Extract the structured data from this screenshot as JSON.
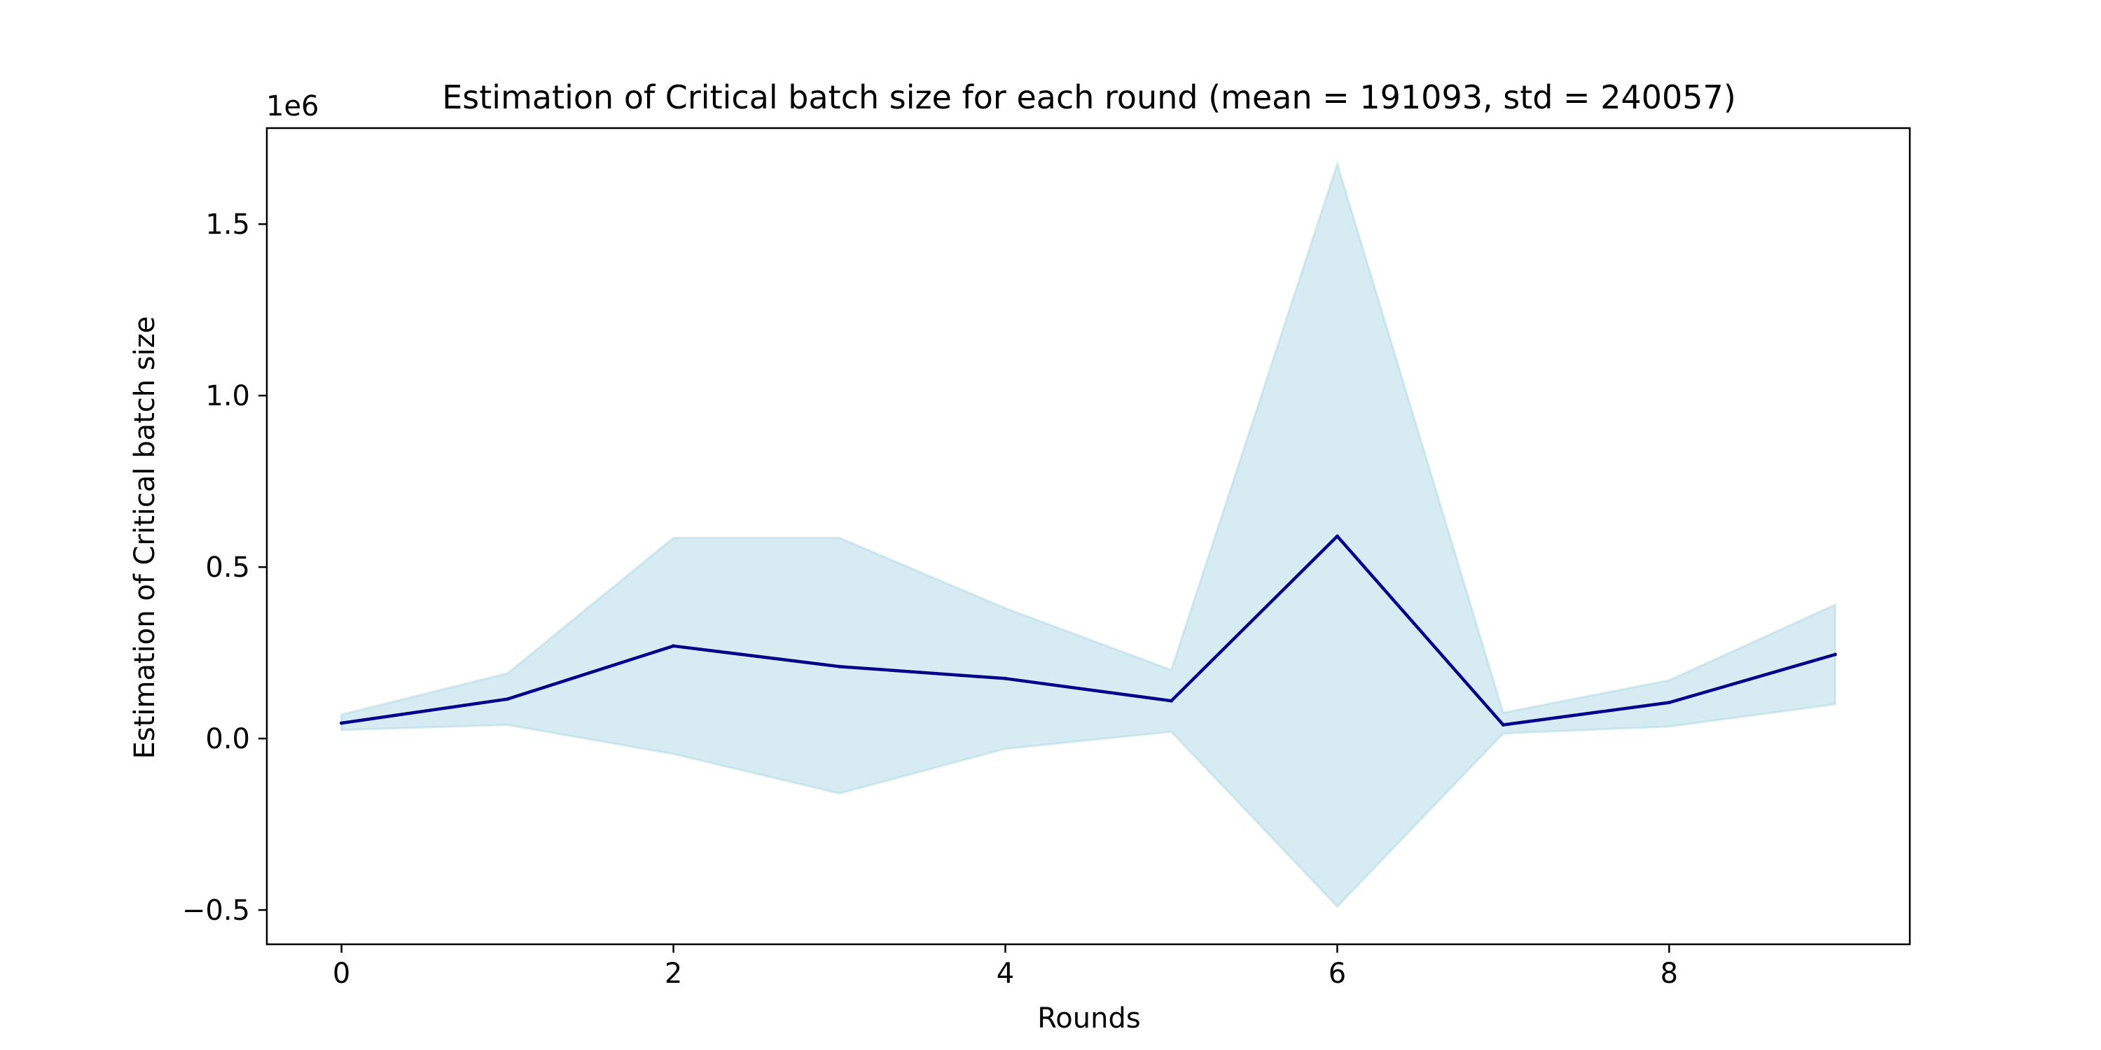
{
  "chart_data": {
    "type": "line",
    "title": "Estimation of Critical batch size for each round (mean = 191093, std = 240057)",
    "xlabel": "Rounds",
    "ylabel": "Estimation of Critical batch size",
    "y_offset_label": "1e6",
    "xlim": [
      -0.45,
      9.45
    ],
    "ylim": [
      -0.6,
      1.78
    ],
    "x_ticks": [
      0,
      2,
      4,
      6,
      8
    ],
    "x_tick_labels": [
      "0",
      "2",
      "4",
      "6",
      "8"
    ],
    "y_ticks": [
      -0.5,
      0.0,
      0.5,
      1.0,
      1.5
    ],
    "y_tick_labels": [
      "−0.5",
      "0.0",
      "0.5",
      "1.0",
      "1.5"
    ],
    "grid": false,
    "x": [
      0,
      1,
      2,
      3,
      4,
      5,
      6,
      7,
      8,
      9
    ],
    "series": [
      {
        "values": [
          0.045,
          0.115,
          0.27,
          0.21,
          0.175,
          0.11,
          0.59,
          0.04,
          0.105,
          0.245
        ],
        "color": "#00008b"
      }
    ],
    "band": {
      "lower": [
        0.025,
        0.04,
        -0.045,
        -0.16,
        -0.03,
        0.02,
        -0.49,
        0.015,
        0.035,
        0.1
      ],
      "upper": [
        0.07,
        0.19,
        0.585,
        0.585,
        0.38,
        0.2,
        1.675,
        0.075,
        0.17,
        0.39
      ],
      "color": "#add8e6"
    }
  }
}
